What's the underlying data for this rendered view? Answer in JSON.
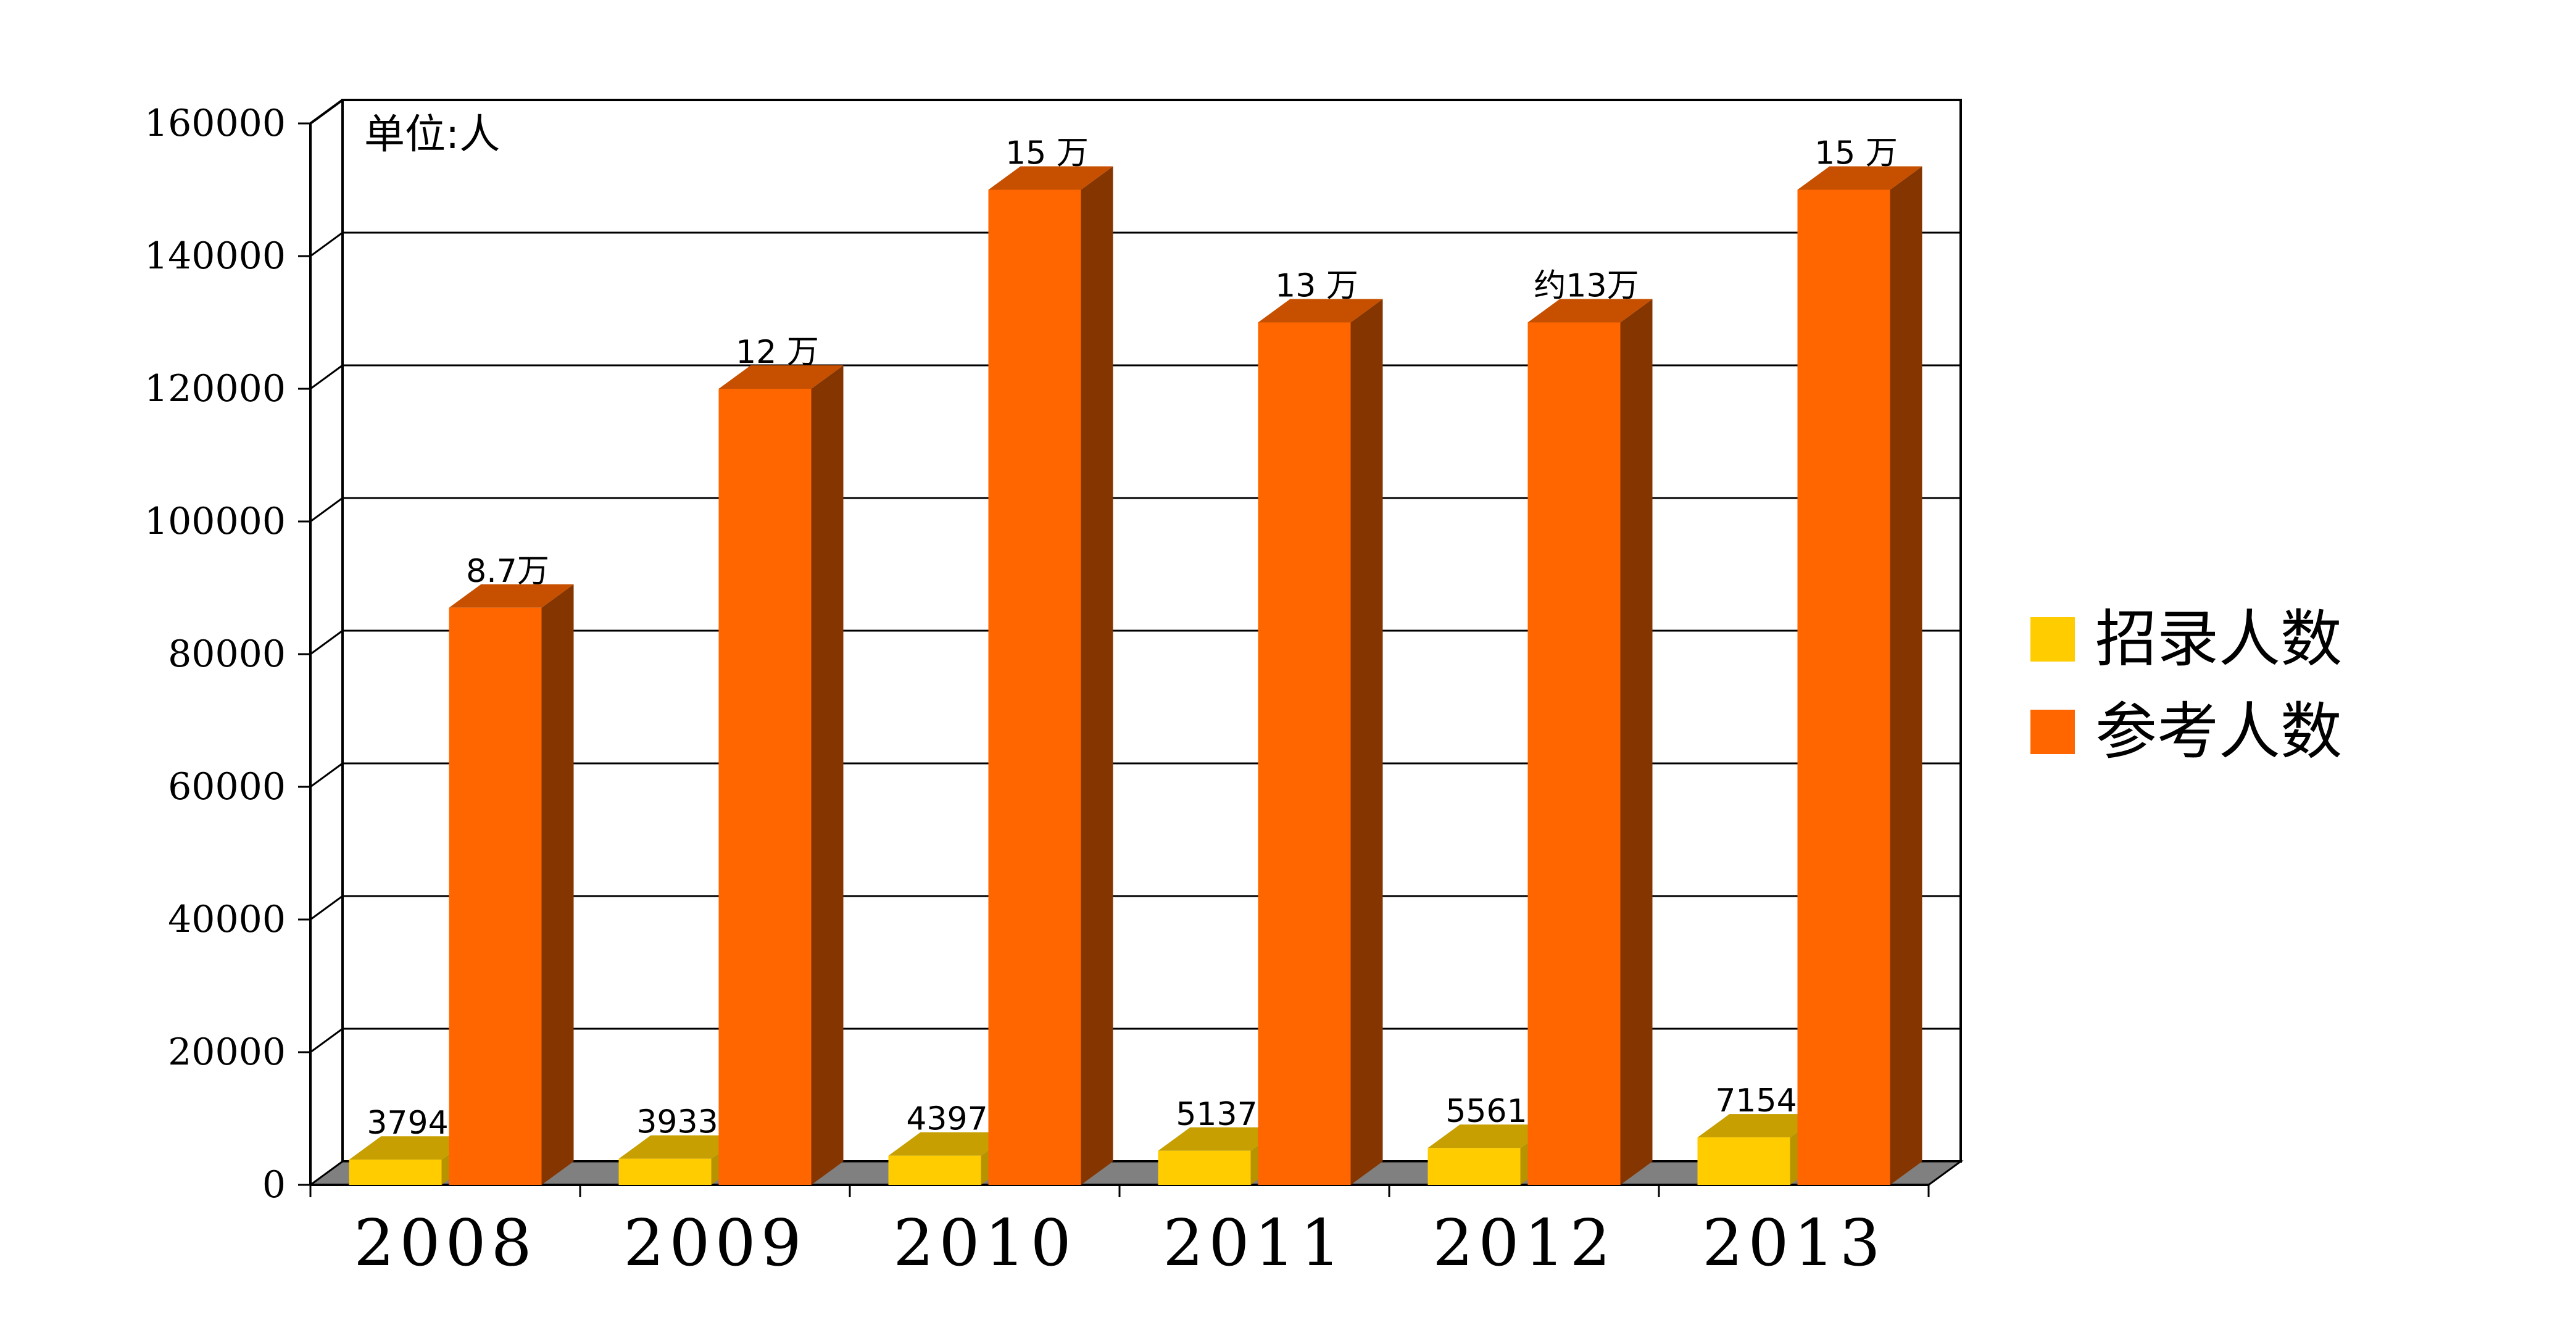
{
  "chart_data": {
    "type": "bar",
    "unit_note": "单位:人",
    "categories": [
      "2008",
      "2009",
      "2010",
      "2011",
      "2012",
      "2013"
    ],
    "series": [
      {
        "name": "招录人数",
        "color": "#FFCC00",
        "values": [
          3794,
          3933,
          4397,
          5137,
          5561,
          7154
        ],
        "labels": [
          "3794",
          "3933",
          "4397",
          "5137",
          "5561",
          "7154"
        ]
      },
      {
        "name": "参考人数",
        "color": "#FF6600",
        "values": [
          87000,
          120000,
          150000,
          130000,
          130000,
          150000
        ],
        "labels": [
          "8.7万",
          "12 万",
          "15 万",
          "13 万",
          "约13万",
          "15 万"
        ]
      }
    ],
    "yticks": [
      "0",
      "20000",
      "40000",
      "60000",
      "80000",
      "100000",
      "120000",
      "140000",
      "160000"
    ],
    "ylim": [
      0,
      160000
    ],
    "grid": true,
    "legend_position": "right"
  }
}
